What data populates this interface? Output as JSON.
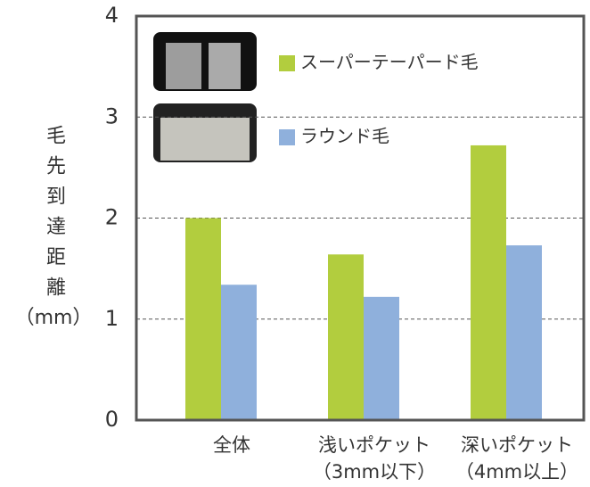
{
  "chart_data": {
    "type": "bar",
    "y_label": "毛先到達距離",
    "y_label_unit": "（mm）",
    "categories": [
      [
        "全体"
      ],
      [
        "浅いポケット",
        "（3mm以下）"
      ],
      [
        "深いポケット",
        "（4mm以上）"
      ]
    ],
    "series": [
      {
        "name": "スーパーテーパード毛",
        "color": "#b2cd3e",
        "values": [
          2.0,
          1.64,
          2.72
        ]
      },
      {
        "name": "ラウンド毛",
        "color": "#8fb0dc",
        "values": [
          1.34,
          1.22,
          1.73
        ]
      }
    ],
    "ylim": [
      0,
      4
    ],
    "yticks": [
      0,
      1,
      2,
      3,
      4
    ],
    "grid": true
  }
}
